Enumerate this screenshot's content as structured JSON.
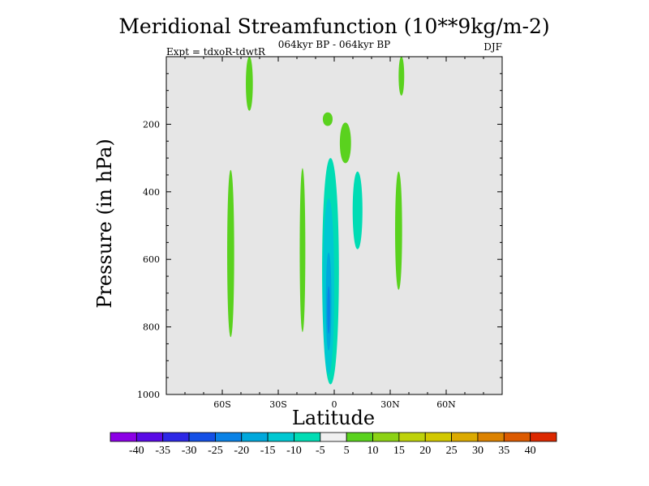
{
  "chart_data": {
    "type": "contour",
    "title": "Meridional Streamfunction (10**9kg/m-2)",
    "subtitle": "064kyr BP - 064kyr BP",
    "left_label": "Expt = tdxoR-tdwtR",
    "right_label": "DJF",
    "xlabel": "Latitude",
    "ylabel": "Pressure (in hPa)",
    "xlim": [
      -90,
      90
    ],
    "ylim": [
      1000,
      0
    ],
    "x_ticks": [
      {
        "value": -60,
        "label": "60S"
      },
      {
        "value": -30,
        "label": "30S"
      },
      {
        "value": 0,
        "label": "0"
      },
      {
        "value": 30,
        "label": "30N"
      },
      {
        "value": 60,
        "label": "60N"
      }
    ],
    "y_ticks": [
      {
        "value": 200,
        "label": "200"
      },
      {
        "value": 400,
        "label": "400"
      },
      {
        "value": 600,
        "label": "600"
      },
      {
        "value": 800,
        "label": "800"
      },
      {
        "value": 1000,
        "label": "1000"
      }
    ],
    "background_level": "-5 to 5",
    "regions": [
      {
        "name": "cell-45s-upper",
        "level": "5 to 10",
        "lat_range": [
          -48,
          -43
        ],
        "p_range": [
          0,
          160
        ]
      },
      {
        "name": "cell-35n-upper",
        "level": "5 to 10",
        "lat_range": [
          34,
          38
        ],
        "p_range": [
          0,
          115
        ]
      },
      {
        "name": "cell-3s-200",
        "level": "5 to 10",
        "lat_range": [
          -7,
          0
        ],
        "p_range": [
          165,
          205
        ]
      },
      {
        "name": "cell-8n-250",
        "level": "5 to 10",
        "lat_range": [
          2,
          10
        ],
        "p_range": [
          195,
          315
        ]
      },
      {
        "name": "cell-57s-mid",
        "level": "5 to 10",
        "lat_range": [
          -58,
          -53
        ],
        "p_range": [
          335,
          830
        ]
      },
      {
        "name": "cell-17s-mid",
        "level": "5 to 10",
        "lat_range": [
          -19,
          -15
        ],
        "p_range": [
          330,
          815
        ]
      },
      {
        "name": "cell-12n-mid",
        "level": "-10 to -5",
        "lat_range": [
          9,
          16
        ],
        "p_range": [
          340,
          570
        ]
      },
      {
        "name": "cell-35n-mid",
        "level": "5 to 10",
        "lat_range": [
          32,
          37
        ],
        "p_range": [
          340,
          690
        ]
      },
      {
        "name": "cell-eq-outer",
        "level": "-10 to -5",
        "lat_range": [
          -8,
          4
        ],
        "p_range": [
          300,
          970
        ]
      },
      {
        "name": "cell-eq-inner1",
        "level": "-15 to -10",
        "lat_range": [
          -7,
          1
        ],
        "p_range": [
          420,
          940
        ]
      },
      {
        "name": "cell-eq-inner2",
        "level": "-20 to -15",
        "lat_range": [
          -5,
          -1
        ],
        "p_range": [
          580,
          870
        ]
      },
      {
        "name": "cell-eq-core",
        "level": "-25 to -20",
        "lat_range": [
          -4,
          -2
        ],
        "p_range": [
          680,
          820
        ]
      }
    ],
    "colorbar": {
      "levels": [
        "-40",
        "-35",
        "-30",
        "-25",
        "-20",
        "-15",
        "-10",
        "-5",
        "5",
        "10",
        "15",
        "20",
        "25",
        "30",
        "35",
        "40"
      ],
      "colors": [
        "#8C00E6",
        "#5A0AE6",
        "#2D28E6",
        "#1450E6",
        "#0A82E6",
        "#00A8DC",
        "#00C8D2",
        "#00DCB4",
        "#F0F0F0",
        "#5AD21E",
        "#8CD214",
        "#BED20A",
        "#D2C800",
        "#DCAA00",
        "#DC8200",
        "#DC5A00",
        "#DC2800"
      ]
    }
  }
}
